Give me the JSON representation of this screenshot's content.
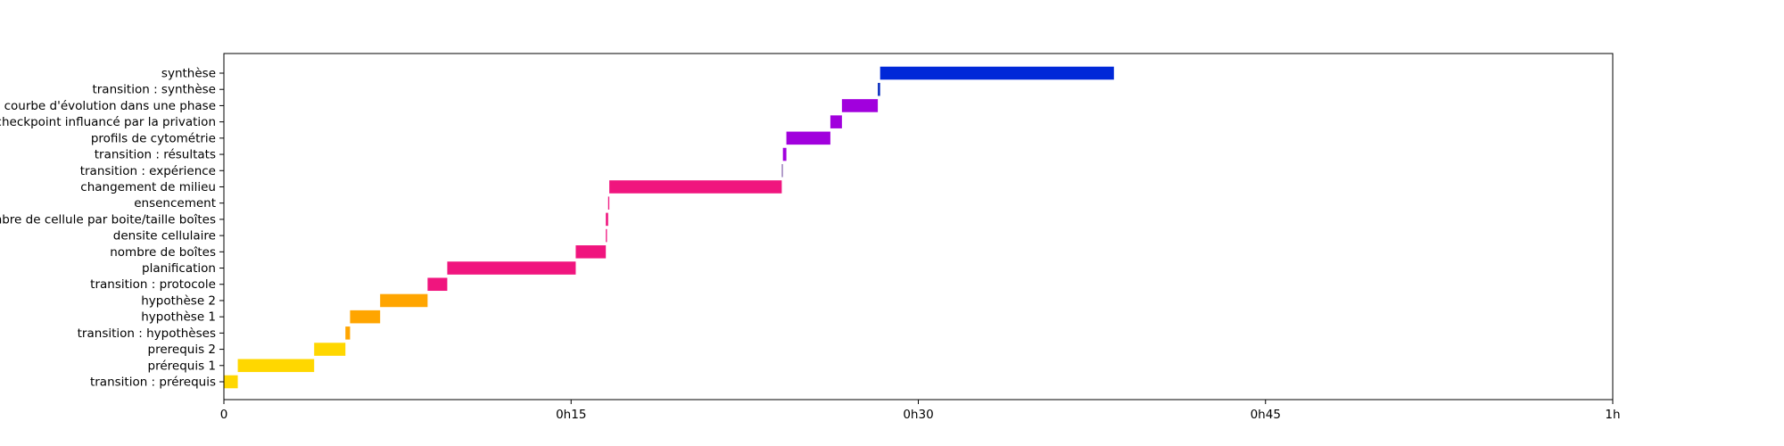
{
  "chart_data": {
    "type": "bar",
    "orientation": "horizontal",
    "title": "",
    "xlabel": "",
    "ylabel": "",
    "x_unit": "minutes",
    "xlim": [
      0,
      60
    ],
    "x_ticks": [
      {
        "value": 0,
        "label": "0"
      },
      {
        "value": 15,
        "label": "0h15"
      },
      {
        "value": 30,
        "label": "0h30"
      },
      {
        "value": 45,
        "label": "0h45"
      },
      {
        "value": 60,
        "label": "1h"
      }
    ],
    "grid": false,
    "legend": "none",
    "categories": [
      "transition : prérequis",
      "prérequis 1",
      "prerequis 2",
      "transition : hypothèses",
      "hypothèse 1",
      "hypothèse 2",
      "transition : protocole",
      "planification",
      "nombre de boîtes",
      "densite cellulaire",
      "nombre de cellule par boite/taille boîtes",
      "ensencement",
      "changement de milieu",
      "transition : expérience",
      "transition : résultats",
      "profils de cytométrie",
      "checkpoint influancé par la privation",
      "courbe d'évolution dans une phase",
      "transition : synthèse",
      "synthèse"
    ],
    "bars": [
      {
        "start": 0.0,
        "end": 0.6,
        "color": "#FFD700"
      },
      {
        "start": 0.6,
        "end": 3.9,
        "color": "#FFD700"
      },
      {
        "start": 3.9,
        "end": 5.25,
        "color": "#FFD700"
      },
      {
        "start": 5.25,
        "end": 5.45,
        "color": "#FFA500"
      },
      {
        "start": 5.45,
        "end": 6.75,
        "color": "#FFA500"
      },
      {
        "start": 6.75,
        "end": 8.8,
        "color": "#FFA500"
      },
      {
        "start": 8.8,
        "end": 9.65,
        "color": "#F0157E"
      },
      {
        "start": 9.65,
        "end": 15.2,
        "color": "#F0157E"
      },
      {
        "start": 15.2,
        "end": 16.5,
        "color": "#F0157E"
      },
      {
        "start": 16.5,
        "end": 16.55,
        "color": "#F0157E"
      },
      {
        "start": 16.5,
        "end": 16.6,
        "color": "#F0157E"
      },
      {
        "start": 16.6,
        "end": 16.65,
        "color": "#F0157E"
      },
      {
        "start": 16.65,
        "end": 24.1,
        "color": "#F0157E"
      },
      {
        "start": 24.1,
        "end": 24.15,
        "color": "#8A6BB0"
      },
      {
        "start": 24.15,
        "end": 24.3,
        "color": "#A100DD"
      },
      {
        "start": 24.3,
        "end": 26.2,
        "color": "#A100DD"
      },
      {
        "start": 26.2,
        "end": 26.7,
        "color": "#A100DD"
      },
      {
        "start": 26.7,
        "end": 28.25,
        "color": "#A100DD"
      },
      {
        "start": 28.25,
        "end": 28.35,
        "color": "#0A2DBF"
      },
      {
        "start": 28.35,
        "end": 38.45,
        "color": "#0028D8"
      }
    ]
  }
}
